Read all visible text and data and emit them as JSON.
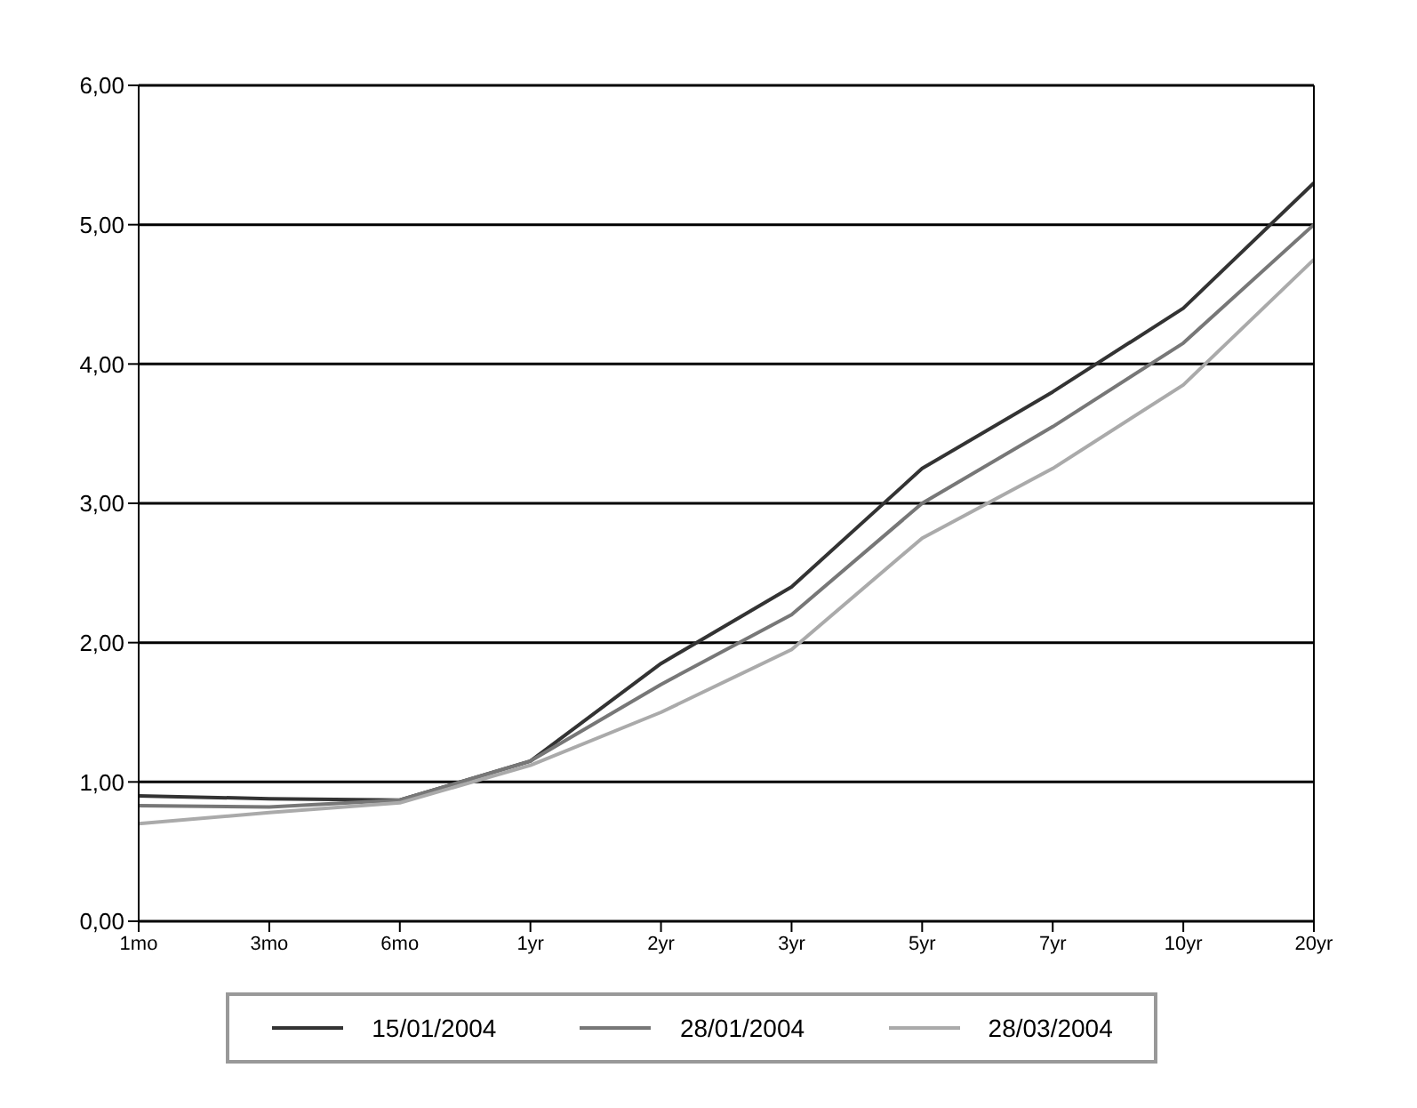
{
  "chart_data": {
    "type": "line",
    "categories": [
      "1mo",
      "3mo",
      "6mo",
      "1yr",
      "2yr",
      "3yr",
      "5yr",
      "7yr",
      "10yr",
      "20yr"
    ],
    "series": [
      {
        "name": "15/01/2004",
        "color": "#333333",
        "values": [
          0.9,
          0.88,
          0.87,
          1.15,
          1.85,
          2.4,
          3.25,
          3.8,
          4.4,
          5.3
        ]
      },
      {
        "name": "28/01/2004",
        "color": "#777777",
        "values": [
          0.83,
          0.82,
          0.87,
          1.15,
          1.7,
          2.2,
          3.0,
          3.55,
          4.15,
          5.0
        ]
      },
      {
        "name": "28/03/2004",
        "color": "#aaaaaa",
        "values": [
          0.7,
          0.78,
          0.85,
          1.12,
          1.5,
          1.95,
          2.75,
          3.25,
          3.85,
          4.75
        ]
      }
    ],
    "ylim": [
      0,
      6
    ],
    "yticks": [
      {
        "value": 0,
        "label": "0,00"
      },
      {
        "value": 1,
        "label": "1,00"
      },
      {
        "value": 2,
        "label": "2,00"
      },
      {
        "value": 3,
        "label": "3,00"
      },
      {
        "value": 4,
        "label": "4,00"
      },
      {
        "value": 5,
        "label": "5,00"
      },
      {
        "value": 6,
        "label": "6,00"
      }
    ],
    "grid": "y",
    "legend": "bottom"
  }
}
